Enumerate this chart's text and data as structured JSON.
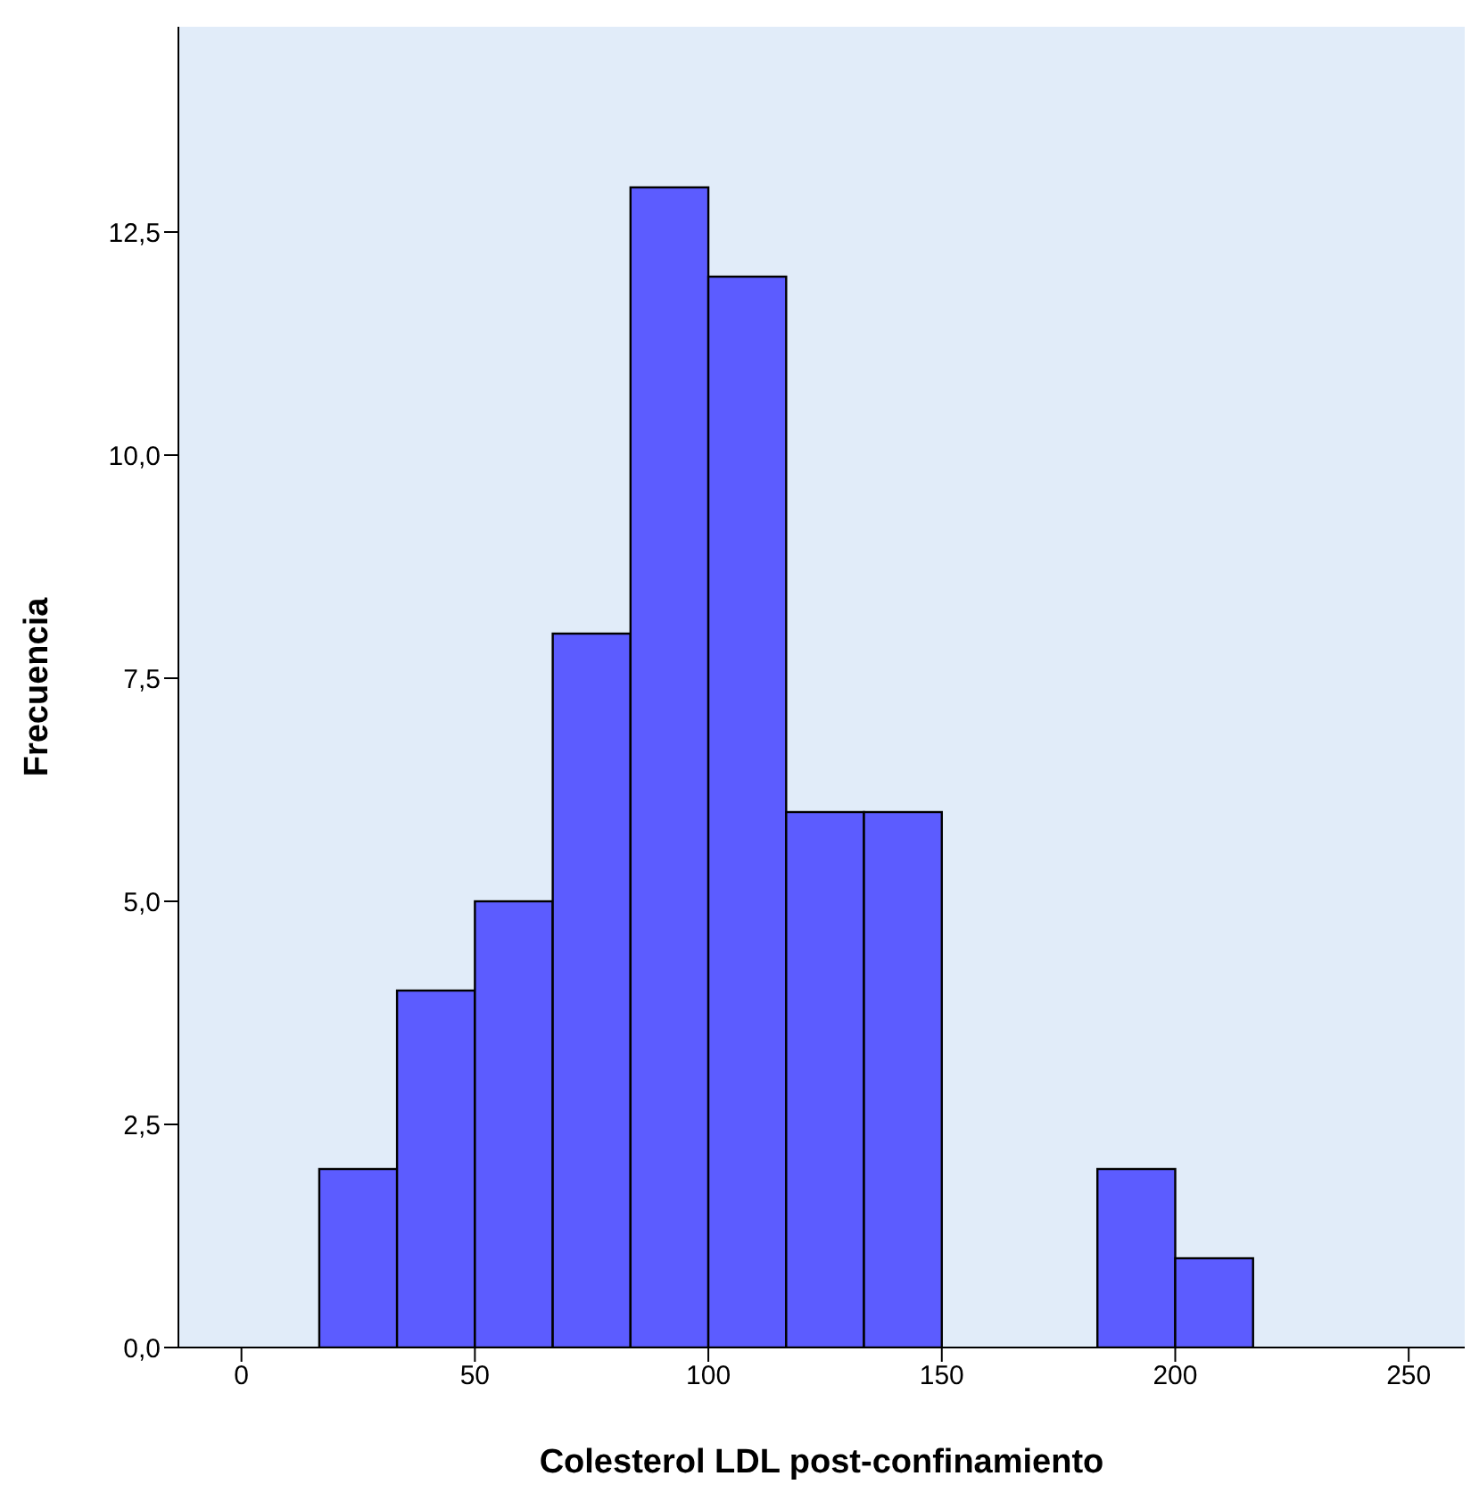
{
  "chart_data": {
    "type": "histogram",
    "xlabel": "Colesterol LDL post-confinamiento",
    "ylabel": "Frecuencia",
    "bins": [
      16.67,
      33.33,
      50,
      66.67,
      83.33,
      100,
      116.67,
      133.33,
      150,
      166.67,
      183.33,
      200,
      216.67
    ],
    "values": [
      2,
      4,
      5,
      8,
      13,
      12,
      6,
      6,
      0,
      0,
      2,
      1
    ],
    "color": "#5c5cff",
    "xlim": [
      -13.5,
      262
    ],
    "xticks": [
      0,
      50,
      100,
      150,
      200,
      250
    ],
    "ylim": [
      0,
      14.8
    ],
    "yticks": [
      {
        "value": 0,
        "label": "0,0"
      },
      {
        "value": 2.5,
        "label": "2,5"
      },
      {
        "value": 5,
        "label": "5,0"
      },
      {
        "value": 7.5,
        "label": "7,5"
      },
      {
        "value": 10,
        "label": "10,0"
      },
      {
        "value": 12.5,
        "label": "12,5"
      }
    ],
    "grid": false
  }
}
